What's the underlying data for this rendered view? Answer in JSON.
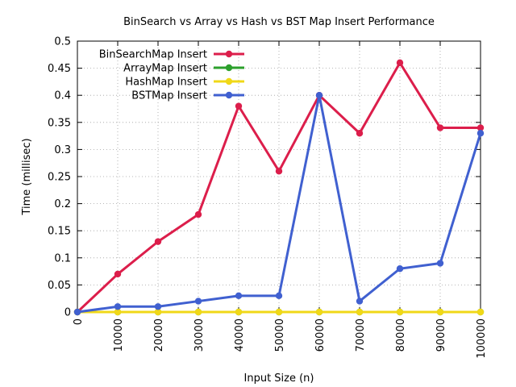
{
  "chart_data": {
    "type": "line",
    "title": "BinSearch vs Array vs Hash vs BST Map Insert Performance",
    "xlabel": "Input Size (n)",
    "ylabel": "Time (millisec)",
    "x": [
      0,
      10000,
      20000,
      30000,
      40000,
      50000,
      60000,
      70000,
      80000,
      90000,
      100000
    ],
    "x_tick_labels": [
      "0",
      "10000",
      "20000",
      "30000",
      "40000",
      "50000",
      "60000",
      "70000",
      "80000",
      "90000",
      "100000"
    ],
    "xlim": [
      0,
      100000
    ],
    "ylim": [
      0,
      0.5
    ],
    "y_ticks": [
      0,
      0.05,
      0.1,
      0.15,
      0.2,
      0.25,
      0.3,
      0.35,
      0.4,
      0.45,
      0.5
    ],
    "y_tick_labels": [
      "0",
      "0.05",
      "0.1",
      "0.15",
      "0.2",
      "0.25",
      "0.3",
      "0.35",
      "0.4",
      "0.45",
      "0.5"
    ],
    "grid": true,
    "legend_position": "top-left",
    "series": [
      {
        "name": "BinSearchMap Insert",
        "color": "#dc1e4b",
        "values": [
          0,
          0.07,
          0.13,
          0.18,
          0.38,
          0.26,
          0.4,
          0.33,
          0.46,
          0.34,
          0.34
        ]
      },
      {
        "name": "ArrayMap Insert",
        "color": "#2ca02c",
        "values": [
          0,
          0,
          0,
          0,
          0,
          0,
          0,
          0,
          0,
          0,
          0
        ]
      },
      {
        "name": "HashMap Insert",
        "color": "#f0d818",
        "values": [
          0,
          0,
          0,
          0,
          0,
          0,
          0,
          0,
          0,
          0,
          0
        ]
      },
      {
        "name": "BSTMap Insert",
        "color": "#4060d0",
        "values": [
          0,
          0.01,
          0.01,
          0.02,
          0.03,
          0.03,
          0.4,
          0.02,
          0.08,
          0.09,
          0.33
        ]
      }
    ]
  }
}
